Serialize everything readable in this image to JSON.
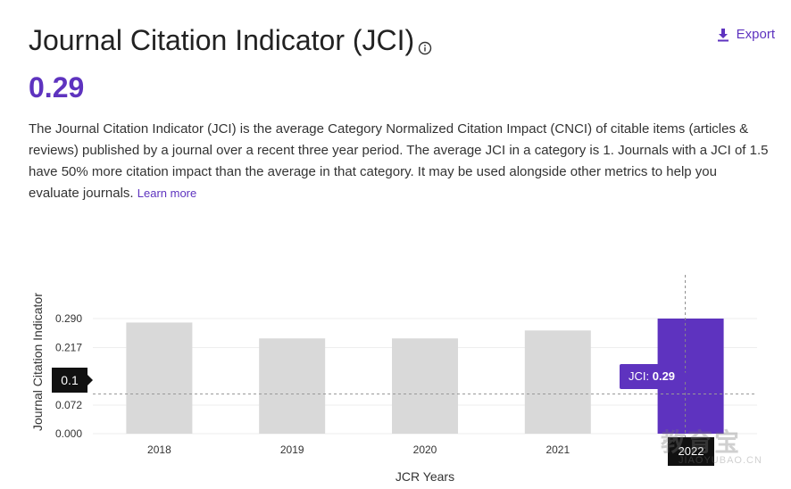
{
  "header": {
    "title": "Journal Citation Indicator (JCI)",
    "export_label": "Export"
  },
  "metric": {
    "value": "0.29"
  },
  "description": {
    "text": "The Journal Citation Indicator (JCI) is the average Category Normalized Citation Impact (CNCI) of citable items (articles & reviews) published by a journal over a recent three year period. The average JCI in a category is 1. Journals with a JCI of 1.5 have 50% more citation impact than the average in that category. It may be used alongside other metrics to help you evaluate journals.",
    "learn_more": "Learn more"
  },
  "tooltip": {
    "prefix": "JCI: ",
    "value": "0.29"
  },
  "reference_label": "0.1",
  "selected_year_label": "2022",
  "watermark": {
    "main": "教育宝",
    "sub": "JIAOYUBAO.CN"
  },
  "colors": {
    "accent": "#5e33bf",
    "bar": "#d9d9d9",
    "grid": "#eeeeee"
  },
  "chart_data": {
    "type": "bar",
    "categories": [
      "2018",
      "2019",
      "2020",
      "2021",
      "2022"
    ],
    "values": [
      0.28,
      0.24,
      0.24,
      0.26,
      0.29
    ],
    "highlight_index": 4,
    "reference_line": 0.1,
    "xlabel": "JCR Years",
    "ylabel": "Journal Citation Indicator",
    "yticks": [
      "0.000",
      "0.072",
      "0.1",
      "0.217",
      "0.290"
    ],
    "ytick_values": [
      0,
      0.072,
      0.1,
      0.217,
      0.29
    ],
    "ylim": [
      0,
      0.29
    ],
    "grid": true
  }
}
